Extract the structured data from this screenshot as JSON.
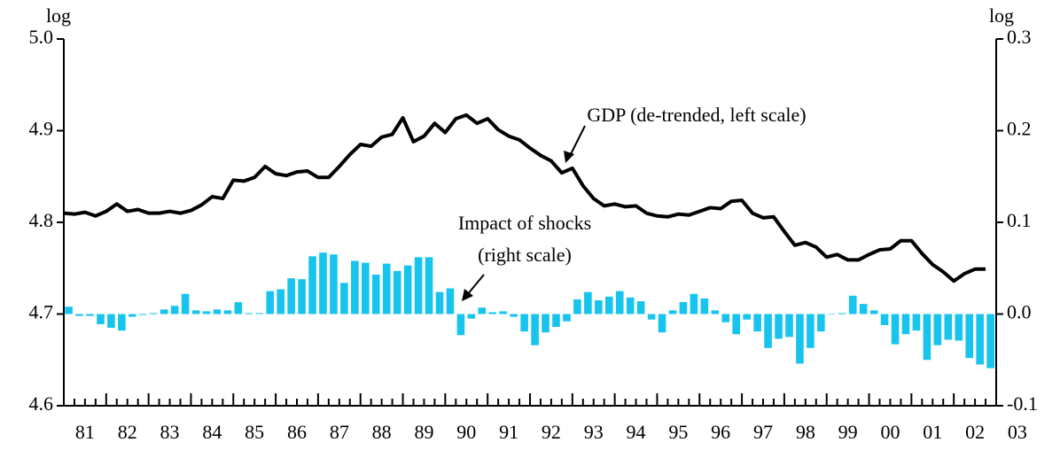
{
  "chart_data": {
    "type": "bar-line",
    "y_unit_label": "log",
    "y2_unit_label": "log",
    "annotations": [
      "GDP (de-trended, left scale)",
      "Impact of shocks",
      "(right scale)"
    ],
    "xlim": [
      1981,
      2003
    ],
    "xticks": [
      {
        "value": 1981.5,
        "label": "81"
      },
      {
        "value": 1982.5,
        "label": "82"
      },
      {
        "value": 1983.5,
        "label": "83"
      },
      {
        "value": 1984.5,
        "label": "84"
      },
      {
        "value": 1985.5,
        "label": "85"
      },
      {
        "value": 1986.5,
        "label": "86"
      },
      {
        "value": 1987.5,
        "label": "87"
      },
      {
        "value": 1988.5,
        "label": "88"
      },
      {
        "value": 1989.5,
        "label": "89"
      },
      {
        "value": 1990.5,
        "label": "90"
      },
      {
        "value": 1991.5,
        "label": "91"
      },
      {
        "value": 1992.5,
        "label": "92"
      },
      {
        "value": 1993.5,
        "label": "93"
      },
      {
        "value": 1994.5,
        "label": "94"
      },
      {
        "value": 1995.5,
        "label": "95"
      },
      {
        "value": 1996.5,
        "label": "96"
      },
      {
        "value": 1997.5,
        "label": "97"
      },
      {
        "value": 1998.5,
        "label": "98"
      },
      {
        "value": 1999.5,
        "label": "99"
      },
      {
        "value": 2000.5,
        "label": "00"
      },
      {
        "value": 2001.5,
        "label": "01"
      },
      {
        "value": 2002.5,
        "label": "02"
      },
      {
        "value": 2003.5,
        "label": "03"
      }
    ],
    "ylim": [
      4.6,
      5.0
    ],
    "yticks": [
      4.6,
      4.7,
      4.8,
      4.9,
      {
        "value": 5.0,
        "label": "5.0"
      }
    ],
    "y2lim": [
      -0.1,
      0.3
    ],
    "y2ticks": [
      -0.1,
      {
        "value": 0.0,
        "label": "0.0"
      },
      0.1,
      0.2,
      0.3
    ],
    "x": [
      1981,
      1981.25,
      1981.5,
      1981.75,
      1982,
      1982.25,
      1982.5,
      1982.75,
      1983,
      1983.25,
      1983.5,
      1983.75,
      1984,
      1984.25,
      1984.5,
      1984.75,
      1985,
      1985.25,
      1985.5,
      1985.75,
      1986,
      1986.25,
      1986.5,
      1986.75,
      1987,
      1987.25,
      1987.5,
      1987.75,
      1988,
      1988.25,
      1988.5,
      1988.75,
      1989,
      1989.25,
      1989.5,
      1989.75,
      1990,
      1990.25,
      1990.5,
      1990.75,
      1991,
      1991.25,
      1991.5,
      1991.75,
      1992,
      1992.25,
      1992.5,
      1992.75,
      1993,
      1993.25,
      1993.5,
      1993.75,
      1994,
      1994.25,
      1994.5,
      1994.75,
      1995,
      1995.25,
      1995.5,
      1995.75,
      1996,
      1996.25,
      1996.5,
      1996.75,
      1997,
      1997.25,
      1997.5,
      1997.75,
      1998,
      1998.25,
      1998.5,
      1998.75,
      1999,
      1999.25,
      1999.5,
      1999.75,
      2000,
      2000.25,
      2000.5,
      2000.75,
      2001,
      2001.25,
      2001.5,
      2001.75,
      2002,
      2002.25,
      2002.5,
      2002.75
    ],
    "series": [
      {
        "name": "GDP (de-trended)",
        "type": "line",
        "color": "#000000",
        "axis": "y",
        "values": [
          4.81,
          4.809,
          4.811,
          4.807,
          4.812,
          4.82,
          4.812,
          4.814,
          4.81,
          4.81,
          4.812,
          4.81,
          4.813,
          4.819,
          4.828,
          4.826,
          4.846,
          4.845,
          4.849,
          4.861,
          4.853,
          4.851,
          4.855,
          4.856,
          4.849,
          4.849,
          4.861,
          4.874,
          4.885,
          4.883,
          4.893,
          4.896,
          4.914,
          4.888,
          4.894,
          4.908,
          4.898,
          4.913,
          4.917,
          4.908,
          4.913,
          4.901,
          4.894,
          4.89,
          4.881,
          4.873,
          4.867,
          4.854,
          4.859,
          4.84,
          4.826,
          4.818,
          4.82,
          4.817,
          4.818,
          4.81,
          4.807,
          4.806,
          4.809,
          4.808,
          4.812,
          4.816,
          4.815,
          4.823,
          4.824,
          4.81,
          4.805,
          4.806,
          4.79,
          4.775,
          4.778,
          4.773,
          4.762,
          4.765,
          4.759,
          4.759,
          4.765,
          4.77,
          4.771,
          4.78,
          4.78,
          4.766,
          4.754,
          4.746,
          4.736,
          4.744,
          4.749,
          4.749
        ]
      },
      {
        "name": "Impact of shocks",
        "type": "bar",
        "color": "#17c4ee",
        "axis": "y2",
        "values": [
          0.008,
          -0.002,
          -0.002,
          -0.011,
          -0.015,
          -0.018,
          -0.003,
          -0.001,
          0.001,
          0.005,
          0.009,
          0.022,
          0.004,
          0.003,
          0.005,
          0.004,
          0.013,
          0.001,
          0.001,
          0.025,
          0.027,
          0.039,
          0.038,
          0.063,
          0.067,
          0.065,
          0.034,
          0.058,
          0.056,
          0.043,
          0.055,
          0.047,
          0.053,
          0.062,
          0.062,
          0.024,
          0.028,
          -0.023,
          -0.005,
          0.007,
          0.002,
          0.003,
          -0.003,
          -0.019,
          -0.034,
          -0.02,
          -0.014,
          -0.008,
          0.016,
          0.024,
          0.015,
          0.019,
          0.025,
          0.018,
          0.014,
          -0.006,
          -0.02,
          0.004,
          0.013,
          0.022,
          0.017,
          0.004,
          -0.009,
          -0.022,
          -0.006,
          -0.019,
          -0.037,
          -0.027,
          -0.025,
          -0.054,
          -0.037,
          -0.019,
          0.0,
          0.001,
          0.02,
          0.011,
          0.004,
          -0.012,
          -0.033,
          -0.022,
          -0.018,
          -0.05,
          -0.034,
          -0.028,
          -0.029,
          -0.048,
          -0.055,
          -0.059
        ]
      }
    ]
  }
}
